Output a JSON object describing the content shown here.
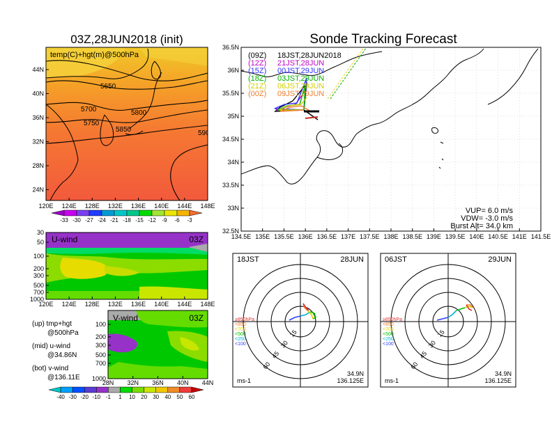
{
  "left_title": "03Z,28JUN2018 (init)",
  "map500": {
    "label": "temp(C)+hgt(m)@500hPa",
    "contours": [
      "5650",
      "5700",
      "5750",
      "5800",
      "5850",
      "590"
    ],
    "lat_ticks": [
      "44N",
      "40N",
      "36N",
      "32N",
      "28N",
      "24N"
    ],
    "lon_ticks": [
      "120E",
      "124E",
      "128E",
      "132E",
      "136E",
      "140E",
      "144E",
      "148E"
    ]
  },
  "temp_colorbar": {
    "labels": [
      "-33",
      "-30",
      "-27",
      "-24",
      "-21",
      "-18",
      "-15",
      "-12",
      "-9",
      "-6",
      "-3"
    ],
    "colors": [
      "#9c00c8",
      "#c800f0",
      "#7a3df2",
      "#1f3cff",
      "#009bd6",
      "#00c8c8",
      "#00c88c",
      "#00dc00",
      "#a0e632",
      "#ebe600",
      "#f5b400",
      "#f56e32"
    ]
  },
  "uwind": {
    "label": "U-wind",
    "time": "03Z",
    "p_ticks": [
      "30",
      "50",
      "100",
      "200",
      "300",
      "500",
      "700",
      "1000"
    ],
    "lon_ticks": [
      "120E",
      "124E",
      "128E",
      "132E",
      "136E",
      "140E",
      "144E",
      "148E"
    ]
  },
  "vwind": {
    "label": "V-wind",
    "time": "03Z",
    "p_ticks": [
      "100",
      "200",
      "300",
      "500",
      "700",
      "1000"
    ],
    "lat_ticks": [
      "28N",
      "32N",
      "36N",
      "40N",
      "44N"
    ]
  },
  "legend_notes": [
    {
      "line1": "(up) tmp+hgt",
      "line2": "@500hPa"
    },
    {
      "line1": "(mid) u-wind",
      "line2": "@34.86N"
    },
    {
      "line1": "(bot) v-wind",
      "line2": "@136.11E"
    }
  ],
  "wind_colorbar": {
    "labels": [
      "-40",
      "-30",
      "-20",
      "-10",
      "-1",
      "1",
      "10",
      "20",
      "30",
      "40",
      "50",
      "60"
    ],
    "colors": [
      "#00c8c8",
      "#00a0ff",
      "#0050ff",
      "#5a3cd2",
      "#9632c8",
      "#aaaaaa",
      "#00dc00",
      "#78dc00",
      "#c8e600",
      "#f0c800",
      "#f08c28",
      "#f03c3c",
      "#c80000"
    ]
  },
  "sonde_title": "Sonde Tracking Forecast",
  "forecast_list": [
    {
      "cycle": "(09Z)",
      "time": "18JST,28JUN2018",
      "color": "#000000"
    },
    {
      "cycle": "(12Z)",
      "time": "21JST,28JUN",
      "color": "#c000c0"
    },
    {
      "cycle": "(15Z)",
      "time": "00JST,29JUN",
      "color": "#3030ff"
    },
    {
      "cycle": "(18Z)",
      "time": "03JST,29JUN",
      "color": "#00b000"
    },
    {
      "cycle": "(21Z)",
      "time": "06JST,29JUN",
      "color": "#d0d000"
    },
    {
      "cycle": "(00Z)",
      "time": "09JST,29JUN",
      "color": "#f08030"
    }
  ],
  "track_map": {
    "lat_ticks": [
      "36.5N",
      "36N",
      "35.5N",
      "35N",
      "34.5N",
      "34N",
      "33.5N",
      "33N",
      "32.5N"
    ],
    "lon_ticks": [
      "134.5E",
      "135E",
      "135.5E",
      "136E",
      "136.5E",
      "137E",
      "137.5E",
      "138E",
      "138.5E",
      "139E",
      "139.5E",
      "140E",
      "140.5E",
      "141E",
      "141.5E"
    ]
  },
  "sonde_params": [
    "VUP= 6.0 m/s",
    "VDW= -3.0 m/s",
    "Burst Alt= 34.0 km"
  ],
  "hodographs": [
    {
      "left_label": "18JST",
      "right_label": "28JUN",
      "ring_labels": [
        "15",
        "30",
        "45",
        "60"
      ],
      "unit": "ms-1",
      "lat": "34.9N",
      "lon": "136.125E"
    },
    {
      "left_label": "06JST",
      "right_label": "29JUN",
      "ring_labels": [
        "15",
        "30",
        "45",
        "60"
      ],
      "unit": "ms-1",
      "lat": "34.9N",
      "lon": "136.125E"
    }
  ],
  "hodo_legend": [
    {
      "text": "≥850hPa",
      "color": "#e03030"
    },
    {
      "text": "<850",
      "color": "#f08030"
    },
    {
      "text": "<700",
      "color": "#e0d000"
    },
    {
      "text": "<500",
      "color": "#00c000"
    },
    {
      "text": "<250",
      "color": "#00b0d0"
    },
    {
      "text": "<100",
      "color": "#3040ff"
    }
  ]
}
